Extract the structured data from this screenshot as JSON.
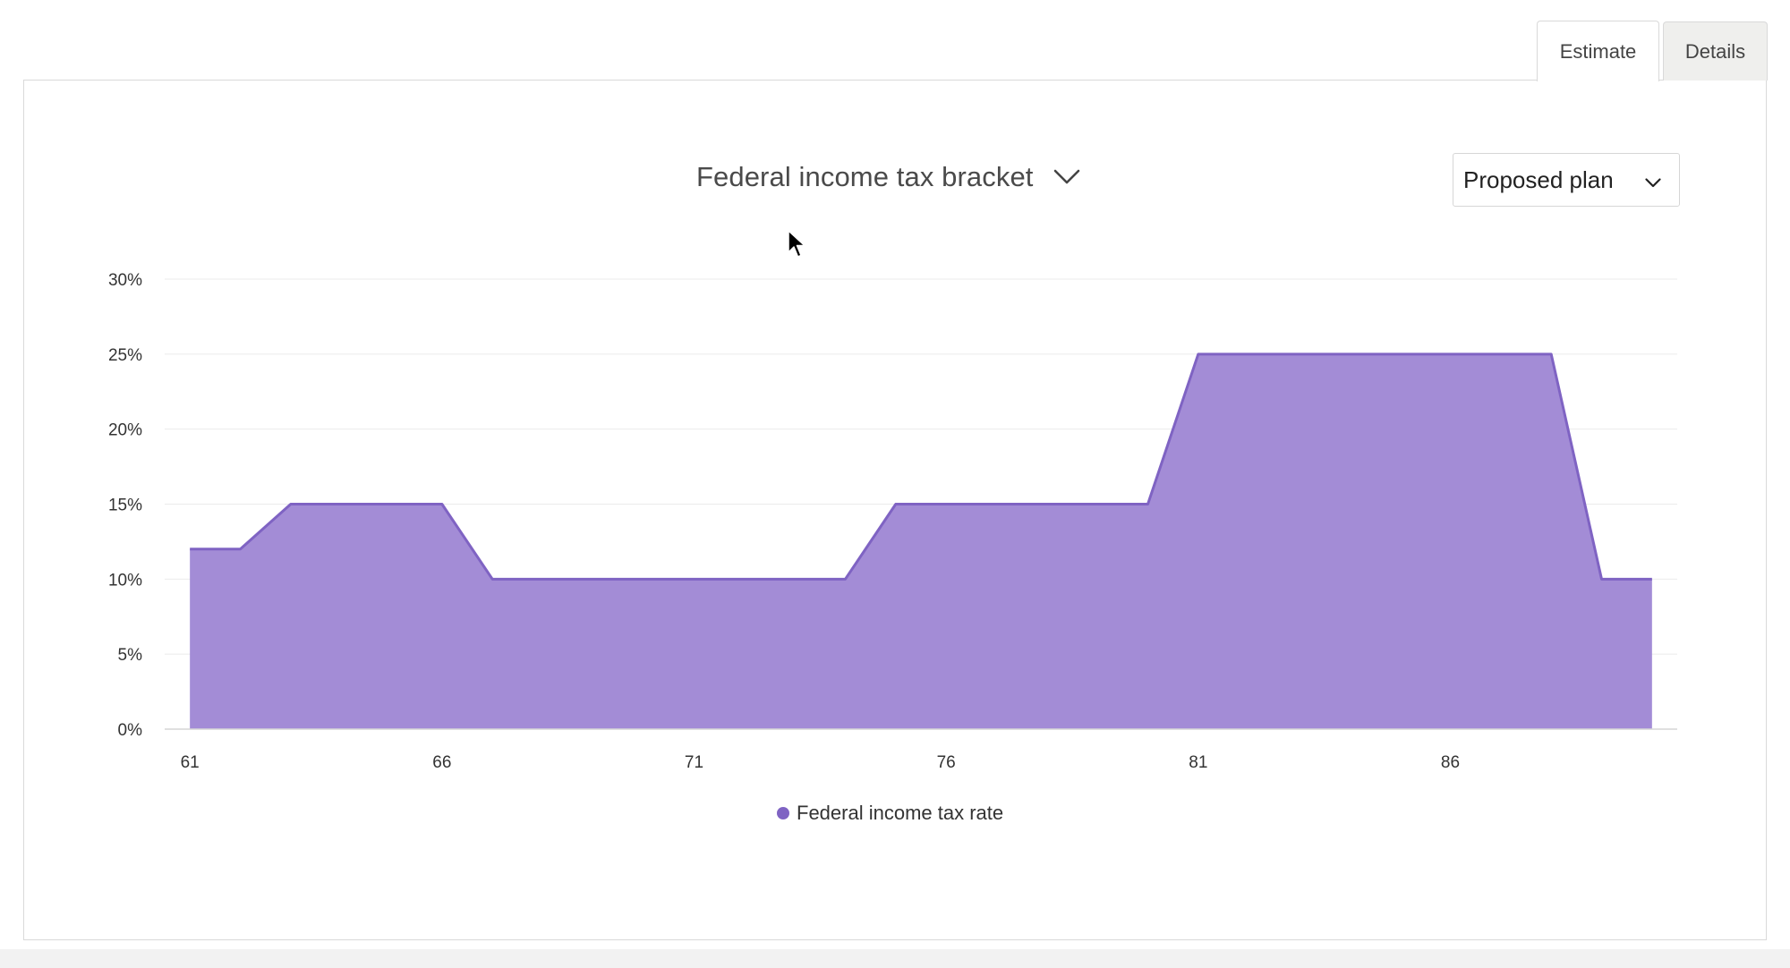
{
  "tabs": [
    {
      "label": "Estimate",
      "active": true
    },
    {
      "label": "Details",
      "active": false
    }
  ],
  "metric_selector": {
    "label": "Federal income tax bracket",
    "icon": "chevron-down-icon"
  },
  "plan_selector": {
    "value": "Proposed plan",
    "icon": "chevron-down-icon"
  },
  "colors": {
    "series_fill": "#a38cd6",
    "series_stroke": "#7f63c3",
    "grid": "#ebebeb",
    "axis": "#d6d6d6",
    "tick_text": "#333333"
  },
  "chart_data": {
    "type": "area",
    "title": "",
    "xlabel": "",
    "ylabel": "",
    "x": [
      61,
      62,
      63,
      64,
      65,
      66,
      67,
      68,
      69,
      70,
      71,
      72,
      73,
      74,
      75,
      76,
      77,
      78,
      79,
      80,
      81,
      82,
      83,
      84,
      85,
      86,
      87,
      88,
      89,
      90
    ],
    "series": [
      {
        "name": "Federal income tax rate",
        "values": [
          12,
          12,
          15,
          15,
          15,
          15,
          10,
          10,
          10,
          10,
          10,
          10,
          10,
          10,
          15,
          15,
          15,
          15,
          15,
          15,
          25,
          25,
          25,
          25,
          25,
          25,
          25,
          25,
          10,
          10
        ]
      }
    ],
    "xlim": [
      60.5,
      90.5
    ],
    "ylim": [
      0,
      30
    ],
    "x_ticks": [
      "61",
      "66",
      "71",
      "76",
      "81",
      "86"
    ],
    "y_ticks": [
      "0%",
      "5%",
      "10%",
      "15%",
      "20%",
      "25%",
      "30%"
    ],
    "legend": {
      "position": "bottom-center",
      "entries": [
        "Federal income tax rate"
      ]
    },
    "grid": true
  }
}
